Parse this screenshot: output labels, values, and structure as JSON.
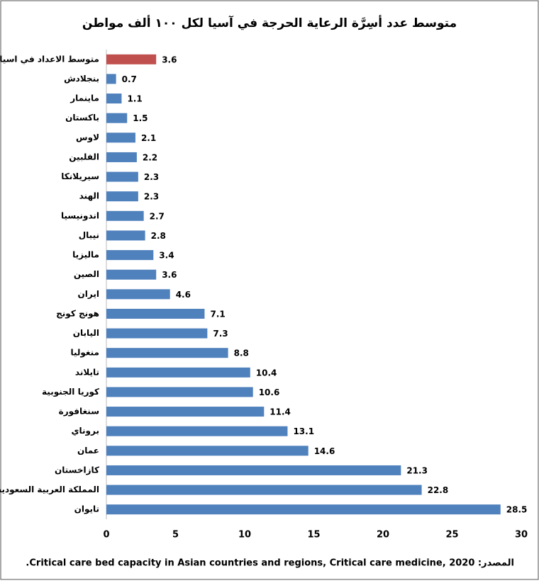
{
  "chart_data": {
    "type": "bar",
    "orientation": "horizontal",
    "title": "متوسط عدد أسِرَّة الرعاية الحرجة في آسيا لكل ١٠٠ ألف مواطن",
    "source": "المصدر: Critical care bed capacity in Asian countries and regions, Critical care medicine, 2020.",
    "categories": [
      "متوسط الاعداد في اسيا",
      "بنجلادش",
      "ماينمار",
      "باكستان",
      "لاوس",
      "الفلبين",
      "سيريلانكا",
      "الهند",
      "اندونيسيا",
      "نيبال",
      "ماليزيا",
      "الصين",
      "ايران",
      "هونج كونج",
      "اليابان",
      "منغوليا",
      "تايلاند",
      "كوريا الجنوبية",
      "سنغافورة",
      "بروناي",
      "عمان",
      "كازاخستان",
      "المملكة العربية السعودية",
      "تايوان"
    ],
    "values": [
      3.6,
      0.7,
      1.1,
      1.5,
      2.1,
      2.2,
      2.3,
      2.3,
      2.7,
      2.8,
      3.4,
      3.6,
      4.6,
      7.1,
      7.3,
      8.8,
      10.4,
      10.6,
      11.4,
      13.1,
      14.6,
      21.3,
      22.8,
      28.5
    ],
    "colors": [
      "#c0504d",
      "#4f81bd",
      "#4f81bd",
      "#4f81bd",
      "#4f81bd",
      "#4f81bd",
      "#4f81bd",
      "#4f81bd",
      "#4f81bd",
      "#4f81bd",
      "#4f81bd",
      "#4f81bd",
      "#4f81bd",
      "#4f81bd",
      "#4f81bd",
      "#4f81bd",
      "#4f81bd",
      "#4f81bd",
      "#4f81bd",
      "#4f81bd",
      "#4f81bd",
      "#4f81bd",
      "#4f81bd",
      "#4f81bd"
    ],
    "xlim": [
      0,
      30
    ],
    "xticks": [
      0,
      5,
      10,
      15,
      20,
      25,
      30
    ],
    "grid": false
  }
}
